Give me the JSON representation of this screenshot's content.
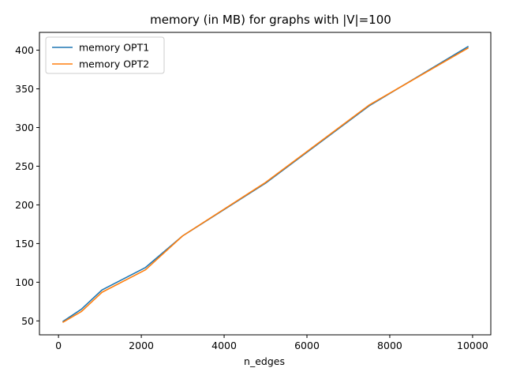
{
  "chart_data": {
    "type": "line",
    "title": "memory (in MB) for graphs with |V|=100",
    "xlabel": "n_edges",
    "ylabel": "",
    "xlim": [
      -460,
      10440
    ],
    "ylim": [
      32,
      423
    ],
    "xticks": [
      0,
      2000,
      4000,
      6000,
      8000,
      10000
    ],
    "yticks": [
      50,
      100,
      150,
      200,
      250,
      300,
      350,
      400
    ],
    "grid": false,
    "legend_position": "upper left",
    "series": [
      {
        "name": "memory OPT1",
        "color": "#1f77b4",
        "x": [
          100,
          550,
          1050,
          2100,
          3000,
          5000,
          7500,
          9900
        ],
        "y": [
          49,
          65,
          90,
          119,
          160,
          228,
          328,
          405
        ]
      },
      {
        "name": "memory OPT2",
        "color": "#ff7f0e",
        "x": [
          100,
          550,
          1050,
          2100,
          3000,
          5000,
          7500,
          9900
        ],
        "y": [
          48,
          62,
          87,
          116,
          160,
          229,
          329,
          403
        ]
      }
    ]
  }
}
